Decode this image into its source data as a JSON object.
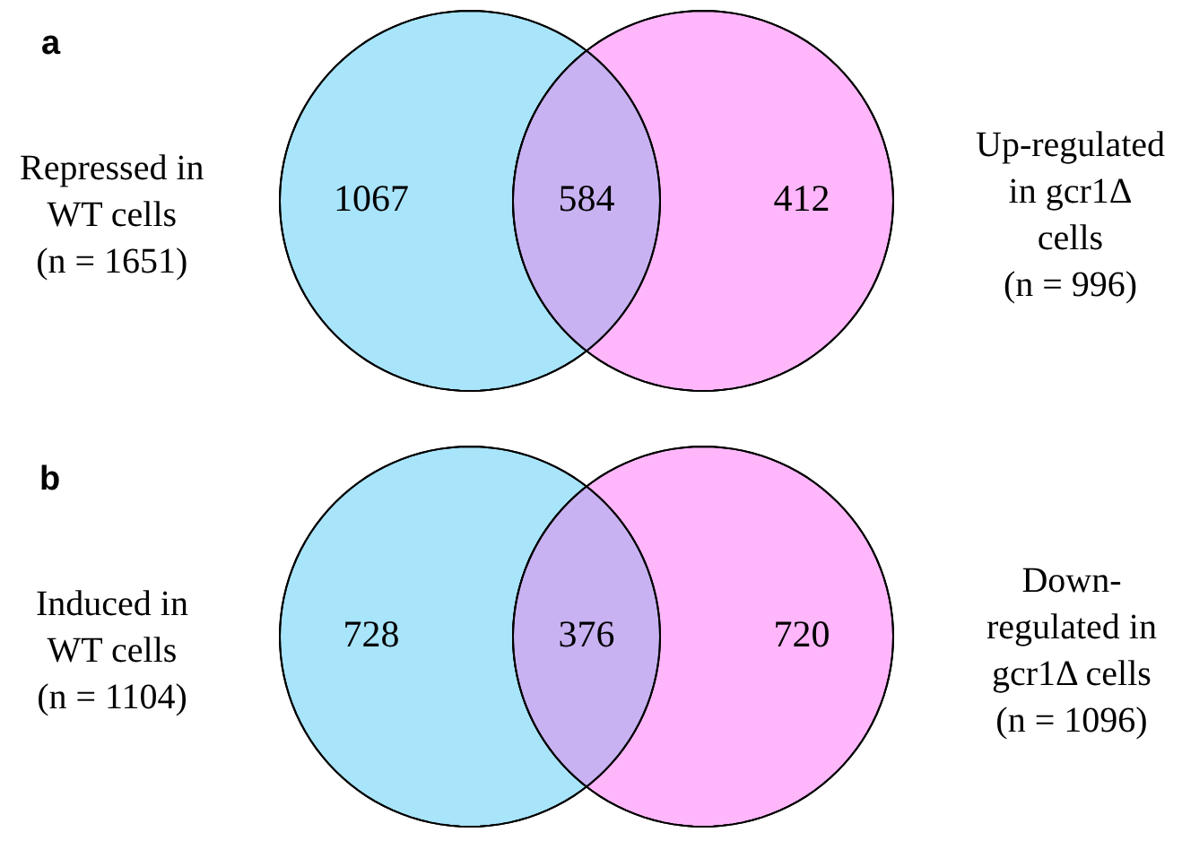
{
  "chart_data": [
    {
      "type": "other",
      "title": "a",
      "data_labels": true,
      "values": [
        1067,
        584,
        412
      ],
      "colors": [
        "#a8e4fa",
        "#c8b2f2",
        "#ffb6fb"
      ],
      "annotations": [
        "Repressed in\nWT cells\n(n = 1651)",
        "Up-regulated\nin gcr1Δ\ncells\n(n = 996)"
      ]
    },
    {
      "type": "other",
      "title": "b",
      "data_labels": true,
      "values": [
        728,
        376,
        720
      ],
      "colors": [
        "#a8e4fa",
        "#c8b2f2",
        "#ffb6fb"
      ],
      "annotations": [
        "Induced in\nWT cells\n(n = 1104)",
        "Down-\nregulated in\ngcr1Δ cells\n(n = 1096)"
      ]
    }
  ]
}
